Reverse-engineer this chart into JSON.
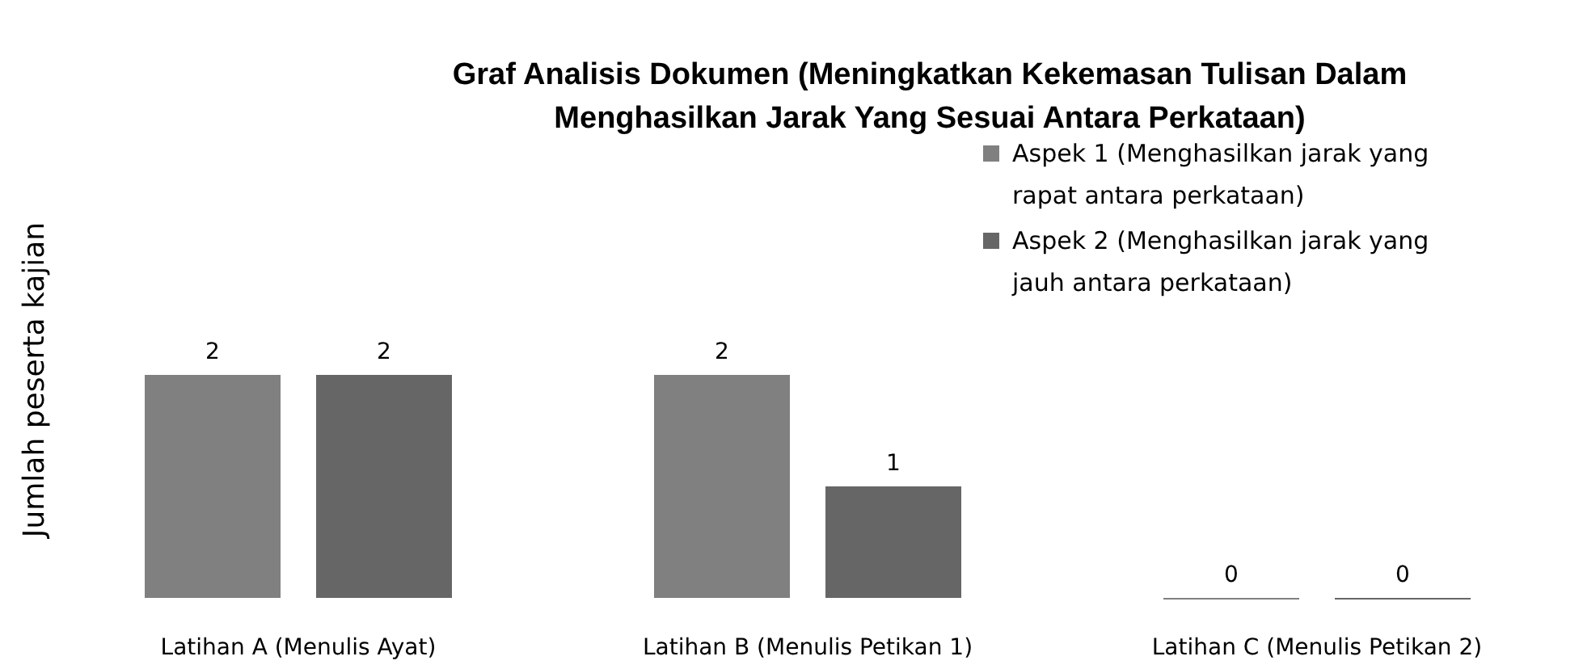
{
  "chart_data": {
    "type": "bar",
    "title": "Graf Analisis Dokumen (Meningkatkan Kekemasan Tulisan Dalam Menghasilkan Jarak Yang Sesuai Antara Perkataan)",
    "ylabel": "Jumlah peserta kajian",
    "categories": [
      "Latihan A (Menulis Ayat)",
      "Latihan B (Menulis Petikan 1)",
      "Latihan C (Menulis Petikan 2)"
    ],
    "series": [
      {
        "name": "Aspek 1 (Menghasilkan jarak yang rapat antara perkataan)",
        "color": "#808080",
        "values": [
          2,
          2,
          0
        ]
      },
      {
        "name": "Aspek 2 (Menghasilkan jarak yang jauh antara perkataan)",
        "color": "#666666",
        "values": [
          2,
          1,
          0
        ]
      }
    ],
    "data_labels": true,
    "legend": "top right"
  }
}
